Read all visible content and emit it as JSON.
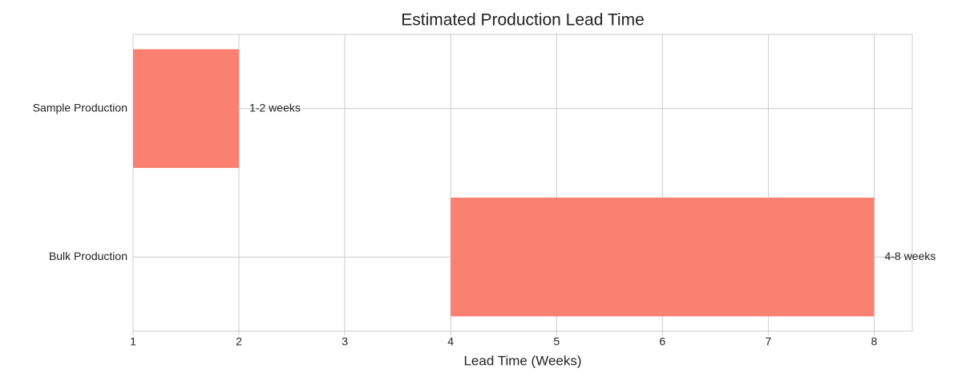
{
  "chart_data": {
    "type": "range_bar",
    "title": "Estimated Production Lead Time",
    "xlabel": "Lead Time (Weeks)",
    "categories": [
      "Sample Production",
      "Bulk Production"
    ],
    "starts": [
      1,
      4
    ],
    "ends": [
      2,
      8
    ],
    "value_labels": [
      "1-2 weeks",
      "4-8 weeks"
    ],
    "color": "#fa8072",
    "xlim": [
      1,
      8.36
    ],
    "xticks": [
      1,
      2,
      3,
      4,
      5,
      6,
      7,
      8
    ],
    "grid": true
  }
}
